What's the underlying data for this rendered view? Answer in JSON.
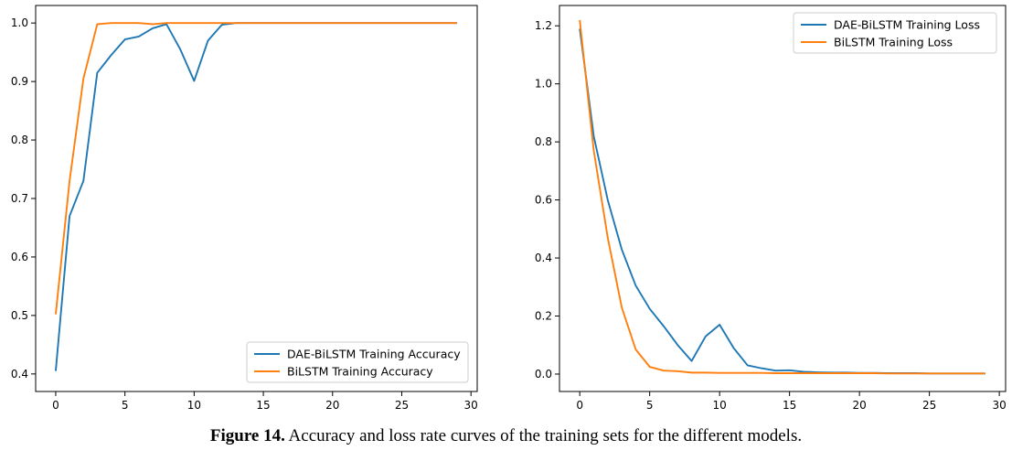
{
  "chart_data": [
    {
      "type": "line",
      "title": "",
      "xlabel": "",
      "ylabel": "",
      "xlim": [
        -1.45,
        30.45
      ],
      "ylim": [
        0.37,
        1.03
      ],
      "x_ticks": [
        0,
        5,
        10,
        15,
        20,
        25,
        30
      ],
      "y_ticks": [
        0.4,
        0.5,
        0.6,
        0.7,
        0.8,
        0.9,
        1.0
      ],
      "y_tick_labels": [
        "0.4",
        "0.5",
        "0.6",
        "0.7",
        "0.8",
        "0.9",
        "1.0"
      ],
      "legend_position": "bottom-right",
      "x": [
        0,
        1,
        2,
        3,
        4,
        5,
        6,
        7,
        8,
        9,
        10,
        11,
        12,
        13,
        14,
        15,
        16,
        17,
        18,
        19,
        20,
        21,
        22,
        23,
        24,
        25,
        26,
        27,
        28,
        29
      ],
      "series": [
        {
          "name": "DAE-BiLSTM Training Accuracy",
          "color": "#1f77b4",
          "values": [
            0.405,
            0.67,
            0.73,
            0.915,
            0.945,
            0.972,
            0.977,
            0.991,
            0.998,
            0.955,
            0.901,
            0.97,
            0.997,
            1.0,
            1.0,
            1.0,
            1.0,
            1.0,
            1.0,
            1.0,
            1.0,
            1.0,
            1.0,
            1.0,
            1.0,
            1.0,
            1.0,
            1.0,
            1.0,
            1.0
          ]
        },
        {
          "name": "BiLSTM Training Accuracy",
          "color": "#ff7f0e",
          "values": [
            0.502,
            0.73,
            0.905,
            0.998,
            1.0,
            1.0,
            1.0,
            0.998,
            1.0,
            1.0,
            1.0,
            1.0,
            1.0,
            1.0,
            1.0,
            1.0,
            1.0,
            1.0,
            1.0,
            1.0,
            1.0,
            1.0,
            1.0,
            1.0,
            1.0,
            1.0,
            1.0,
            1.0,
            1.0,
            1.0
          ]
        }
      ]
    },
    {
      "type": "line",
      "title": "",
      "xlabel": "",
      "ylabel": "",
      "xlim": [
        -1.45,
        30.45
      ],
      "ylim": [
        -0.06,
        1.27
      ],
      "x_ticks": [
        0,
        5,
        10,
        15,
        20,
        25,
        30
      ],
      "y_ticks": [
        0.0,
        0.2,
        0.4,
        0.6,
        0.8,
        1.0,
        1.2
      ],
      "y_tick_labels": [
        "0.0",
        "0.2",
        "0.4",
        "0.6",
        "0.8",
        "1.0",
        "1.2"
      ],
      "legend_position": "top-right",
      "x": [
        0,
        1,
        2,
        3,
        4,
        5,
        6,
        7,
        8,
        9,
        10,
        11,
        12,
        13,
        14,
        15,
        16,
        17,
        18,
        19,
        20,
        21,
        22,
        23,
        24,
        25,
        26,
        27,
        28,
        29
      ],
      "series": [
        {
          "name": "DAE-BiLSTM Training Loss",
          "color": "#1f77b4",
          "values": [
            1.19,
            0.82,
            0.6,
            0.43,
            0.305,
            0.225,
            0.165,
            0.1,
            0.045,
            0.13,
            0.17,
            0.09,
            0.03,
            0.02,
            0.012,
            0.013,
            0.008,
            0.006,
            0.005,
            0.005,
            0.004,
            0.004,
            0.003,
            0.003,
            0.003,
            0.002,
            0.002,
            0.002,
            0.002,
            0.002
          ]
        },
        {
          "name": "BiLSTM Training Loss",
          "color": "#ff7f0e",
          "values": [
            1.22,
            0.77,
            0.47,
            0.23,
            0.085,
            0.025,
            0.012,
            0.01,
            0.005,
            0.005,
            0.004,
            0.004,
            0.004,
            0.004,
            0.003,
            0.003,
            0.003,
            0.003,
            0.003,
            0.003,
            0.003,
            0.003,
            0.002,
            0.002,
            0.002,
            0.002,
            0.002,
            0.002,
            0.002,
            0.002
          ]
        }
      ]
    }
  ],
  "caption": {
    "label": "Figure 14.",
    "text": " Accuracy and loss rate curves of the training sets for the different models."
  }
}
